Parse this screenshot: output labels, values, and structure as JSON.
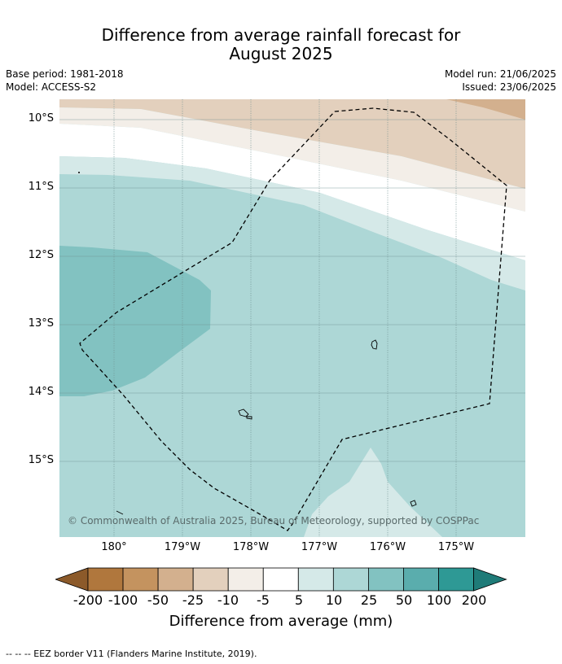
{
  "header": {
    "title_line1": "Difference from average rainfall forecast for",
    "title_line2": "August 2025",
    "base_period": "Base period: 1981-2018",
    "model": "Model: ACCESS-S2",
    "model_run": "Model run: 21/06/2025",
    "issued": "Issued: 23/06/2025"
  },
  "map": {
    "lat_labels": [
      "10°S",
      "11°S",
      "12°S",
      "13°S",
      "14°S",
      "15°S"
    ],
    "lon_labels": [
      "180°",
      "179°W",
      "178°W",
      "177°W",
      "176°W",
      "175°W"
    ],
    "copyright": "© Commonwealth of Australia 2025, Bureau of Meteorology, supported by COSPPac",
    "colors": {
      "dry_25": "#e3d0bd",
      "dry_10": "#f3eee8",
      "neutral": "#ffffff",
      "wet_5": "#d5e9e8",
      "wet_10": "#add7d6",
      "wet_25": "#82c2c1"
    }
  },
  "colorbar": {
    "labels": [
      "-200",
      "-100",
      "-50",
      "-25",
      "-10",
      "-5",
      "5",
      "10",
      "25",
      "50",
      "100",
      "200"
    ],
    "colors": [
      "#8c5a2a",
      "#b0773d",
      "#c4935f",
      "#d3b08e",
      "#e3d0bd",
      "#f3eee8",
      "#ffffff",
      "#d5e9e8",
      "#add7d6",
      "#82c2c1",
      "#5aadad",
      "#2e9995",
      "#1f7b78"
    ],
    "title": "Difference from average (mm)"
  },
  "footnote": "--  --  -- EEZ border V11 (Flanders Marine Institute, 2019)."
}
